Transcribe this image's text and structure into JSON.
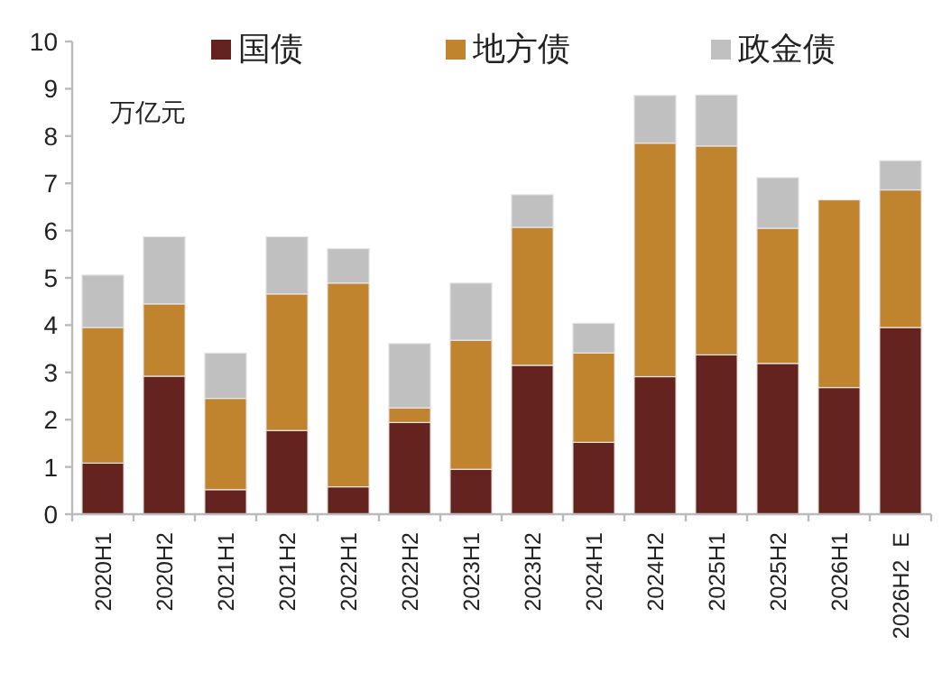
{
  "chart_data": {
    "type": "bar",
    "stacked": true,
    "categories": [
      "2020H1",
      "2020H2",
      "2021H1",
      "2021H2",
      "2022H1",
      "2022H2",
      "2023H1",
      "2023H2",
      "2024H1",
      "2024H2",
      "2025H1",
      "2025H2",
      "2026H1",
      "2026H2  E"
    ],
    "series": [
      {
        "name": "国债",
        "color": "#65231f",
        "values": [
          1.08,
          2.92,
          0.52,
          1.77,
          0.58,
          1.94,
          0.95,
          3.15,
          1.52,
          2.91,
          3.37,
          3.19,
          2.68,
          3.95
        ]
      },
      {
        "name": "地方债",
        "color": "#c0832e",
        "values": [
          2.87,
          1.53,
          1.93,
          2.89,
          4.31,
          0.31,
          2.73,
          2.92,
          1.89,
          4.94,
          4.42,
          2.86,
          3.97,
          2.91
        ]
      },
      {
        "name": "政金债",
        "color": "#c0c0c0",
        "values": [
          1.11,
          1.42,
          0.96,
          1.21,
          0.73,
          1.36,
          1.21,
          0.69,
          0.63,
          1.01,
          1.08,
          1.07,
          0,
          0.62
        ]
      }
    ],
    "ylim": [
      0,
      10
    ],
    "yticks": [
      0,
      1,
      2,
      3,
      4,
      5,
      6,
      7,
      8,
      9,
      10
    ],
    "legend": "top",
    "annotations": [
      "万亿元"
    ]
  }
}
